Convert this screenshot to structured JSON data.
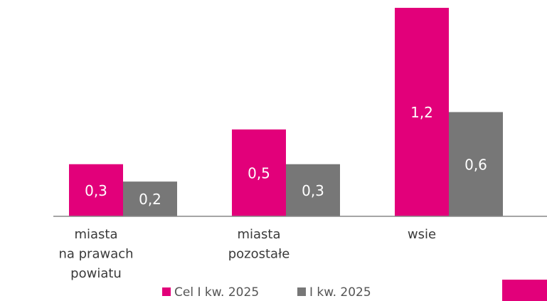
{
  "chart_data": {
    "type": "bar",
    "categories": [
      [
        "miasta",
        "na prawach",
        "powiatu"
      ],
      [
        "miasta",
        "pozostałe"
      ],
      [
        "wsie"
      ]
    ],
    "series": [
      {
        "name": "Cel  I kw. 2025",
        "color": "#e2007a",
        "values": [
          0.3,
          0.5,
          1.2
        ],
        "value_labels": [
          "0,3",
          "0,5",
          "1,2"
        ]
      },
      {
        "name": "I kw. 2025",
        "color": "#777777",
        "values": [
          0.2,
          0.3,
          0.6
        ],
        "value_labels": [
          "0,2",
          "0,3",
          "0,6"
        ]
      }
    ],
    "ylim": [
      0,
      1.2
    ]
  }
}
